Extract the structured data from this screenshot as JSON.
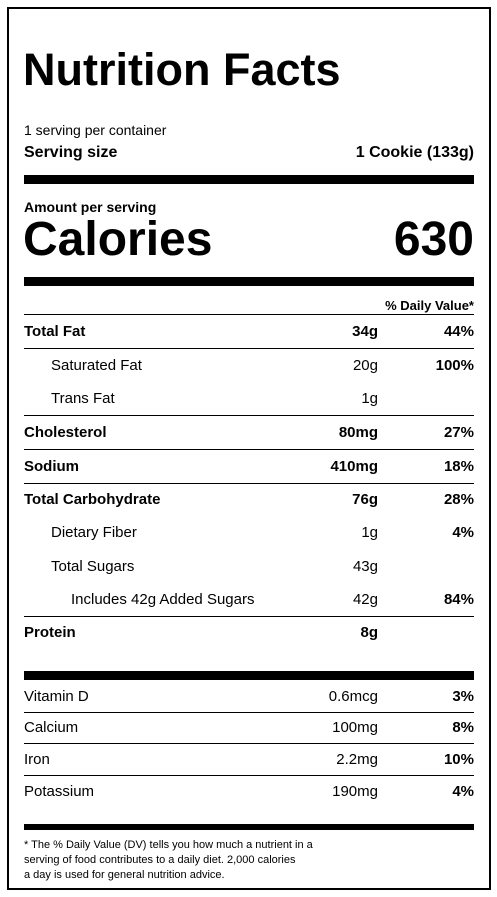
{
  "header": {
    "title": "Nutrition Facts",
    "servings": "1 serving per container",
    "serving_size_label": "Serving size",
    "serving_size_value": "1 Cookie (133g)"
  },
  "calories": {
    "amount_label": "Amount per serving",
    "label": "Calories",
    "value": "630"
  },
  "daily_value_header": "% Daily Value*",
  "nutrients": [
    {
      "name": "Total Fat",
      "amount": "34g",
      "daily_value": "44%"
    },
    {
      "name": "Saturated Fat",
      "amount": "20g",
      "daily_value": "100%"
    },
    {
      "name": "Trans Fat",
      "amount": "1g"
    },
    {
      "name": "Cholesterol",
      "amount": "80mg",
      "daily_value": "27%"
    },
    {
      "name": "Sodium",
      "amount": "410mg",
      "daily_value": "18%"
    },
    {
      "name": "Total Carbohydrate",
      "amount": "76g",
      "daily_value": "28%"
    },
    {
      "name": "Dietary Fiber",
      "amount": "1g",
      "daily_value": "4%"
    },
    {
      "name": "Total Sugars",
      "amount": "43g"
    },
    {
      "name": "Includes 42g Added Sugars",
      "amount": "42g",
      "daily_value": "84%"
    },
    {
      "name": "Protein",
      "amount": "8g"
    }
  ],
  "vitamins": [
    {
      "name": "Vitamin D",
      "amount": "0.6mcg",
      "daily_value": "3%"
    },
    {
      "name": "Calcium",
      "amount": "100mg",
      "daily_value": "8%"
    },
    {
      "name": "Iron",
      "amount": "2.2mg",
      "daily_value": "10%"
    },
    {
      "name": "Potassium",
      "amount": "190mg",
      "daily_value": "4%"
    }
  ],
  "footnote": [
    "* The % Daily Value (DV) tells you how much a nutrient in a",
    "serving of food contributes to a daily diet. 2,000 calories",
    "a day is used for general nutrition advice."
  ]
}
